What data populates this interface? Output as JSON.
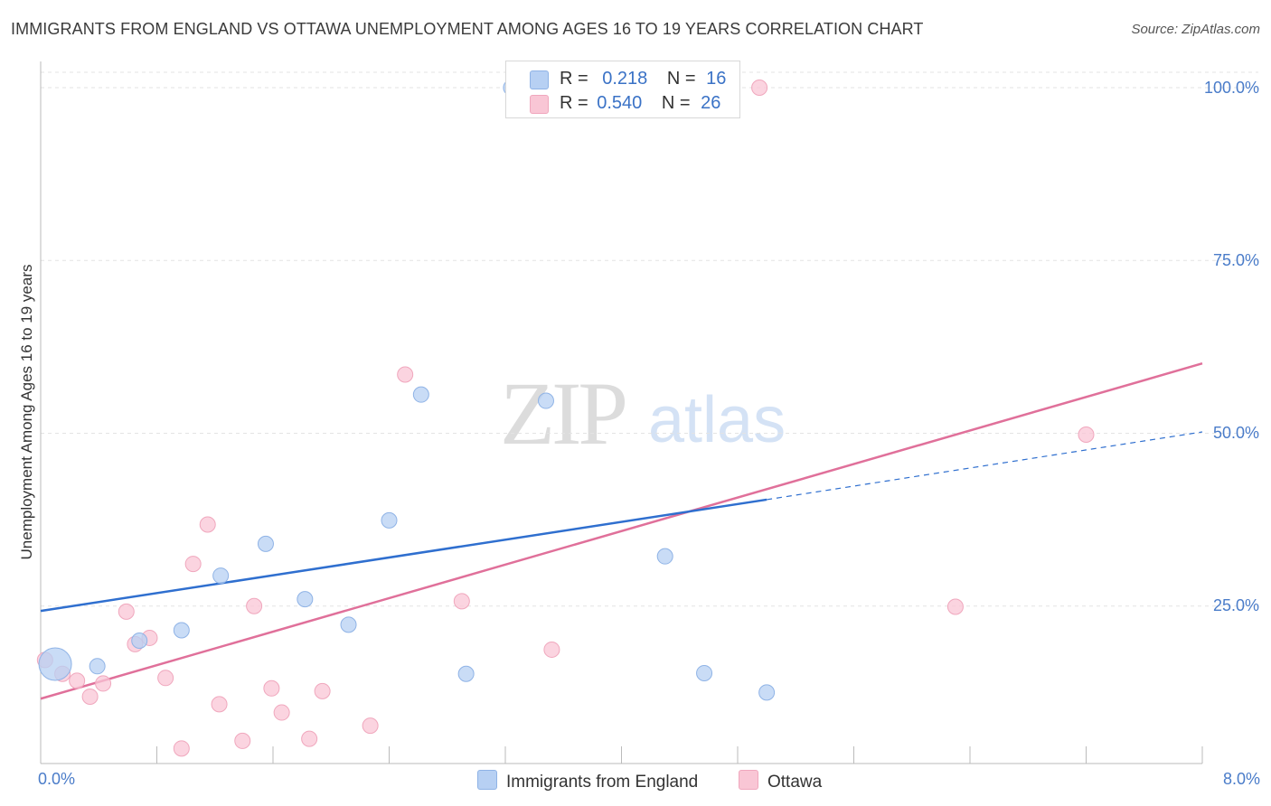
{
  "header": {
    "title": "IMMIGRANTS FROM ENGLAND VS OTTAWA UNEMPLOYMENT AMONG AGES 16 TO 19 YEARS CORRELATION CHART",
    "source": "Source: ZipAtlas.com"
  },
  "watermark": {
    "zip": "ZIP",
    "atlas": "atlas"
  },
  "colors": {
    "england_fill": "#b7d0f3",
    "england_stroke": "#8fb3e6",
    "england_line": "#2f6fcf",
    "ottawa_fill": "#f9c6d5",
    "ottawa_stroke": "#f0a7bd",
    "ottawa_line": "#e0709a",
    "grid": "#e3e3e3",
    "axis_text": "#4a7cc9"
  },
  "legend": {
    "rows": [
      {
        "r_label": "R =",
        "r_value": "0.218",
        "n_label": "N =",
        "n_value": "16"
      },
      {
        "r_label": "R =",
        "r_value": "0.540",
        "n_label": "N =",
        "n_value": "26"
      }
    ],
    "bottom": [
      "Immigrants from England",
      "Ottawa"
    ]
  },
  "chart_data": {
    "type": "scatter",
    "title": "IMMIGRANTS FROM ENGLAND VS OTTAWA UNEMPLOYMENT AMONG AGES 16 TO 19 YEARS CORRELATION CHART",
    "xlabel": "",
    "ylabel": "Unemployment Among Ages 16 to 19 years",
    "xlim": [
      0,
      8
    ],
    "ylim": [
      0,
      100
    ],
    "x_tick_labels": [
      "0.0%",
      "8.0%"
    ],
    "y_ticks": [
      25,
      50,
      75,
      100
    ],
    "y_tick_labels": [
      "25.0%",
      "50.0%",
      "75.0%",
      "100.0%"
    ],
    "grid": true,
    "series": [
      {
        "name": "Immigrants from England",
        "r": 0.218,
        "n": 16,
        "points": [
          {
            "x": 0.1,
            "y": 16.6,
            "big": true
          },
          {
            "x": 0.39,
            "y": 16.3
          },
          {
            "x": 0.68,
            "y": 20.0
          },
          {
            "x": 0.97,
            "y": 21.5
          },
          {
            "x": 1.24,
            "y": 29.4
          },
          {
            "x": 1.55,
            "y": 34.0
          },
          {
            "x": 1.82,
            "y": 26.0
          },
          {
            "x": 2.12,
            "y": 22.3
          },
          {
            "x": 2.4,
            "y": 37.4
          },
          {
            "x": 2.62,
            "y": 55.6
          },
          {
            "x": 2.93,
            "y": 15.2
          },
          {
            "x": 3.24,
            "y": 100.0
          },
          {
            "x": 3.48,
            "y": 54.7
          },
          {
            "x": 4.3,
            "y": 32.2
          },
          {
            "x": 4.57,
            "y": 15.3
          },
          {
            "x": 5.0,
            "y": 12.5
          }
        ],
        "trend": {
          "x0": 0,
          "y0": 24.3,
          "x1": 5.0,
          "y1": 40.4,
          "dash_x1": 8.0,
          "dash_y1": 50.2
        }
      },
      {
        "name": "Ottawa",
        "r": 0.54,
        "n": 26,
        "points": [
          {
            "x": 0.03,
            "y": 17.2
          },
          {
            "x": 0.15,
            "y": 15.2
          },
          {
            "x": 0.25,
            "y": 14.2
          },
          {
            "x": 0.34,
            "y": 11.9
          },
          {
            "x": 0.43,
            "y": 13.8
          },
          {
            "x": 0.59,
            "y": 24.2
          },
          {
            "x": 0.65,
            "y": 19.5
          },
          {
            "x": 0.75,
            "y": 20.4
          },
          {
            "x": 0.86,
            "y": 14.6
          },
          {
            "x": 0.97,
            "y": 4.4
          },
          {
            "x": 1.05,
            "y": 31.1
          },
          {
            "x": 1.15,
            "y": 36.8
          },
          {
            "x": 1.23,
            "y": 10.8
          },
          {
            "x": 1.39,
            "y": 5.5
          },
          {
            "x": 1.47,
            "y": 25.0
          },
          {
            "x": 1.59,
            "y": 13.1
          },
          {
            "x": 1.66,
            "y": 9.6
          },
          {
            "x": 1.85,
            "y": 5.8
          },
          {
            "x": 1.94,
            "y": 12.7
          },
          {
            "x": 2.27,
            "y": 7.7
          },
          {
            "x": 2.51,
            "y": 58.5
          },
          {
            "x": 2.9,
            "y": 25.7
          },
          {
            "x": 3.52,
            "y": 18.7
          },
          {
            "x": 4.95,
            "y": 100.0
          },
          {
            "x": 6.3,
            "y": 24.9
          },
          {
            "x": 7.2,
            "y": 49.8
          }
        ],
        "trend": {
          "x0": 0,
          "y0": 11.6,
          "x1": 8.0,
          "y1": 60.1
        }
      }
    ]
  }
}
